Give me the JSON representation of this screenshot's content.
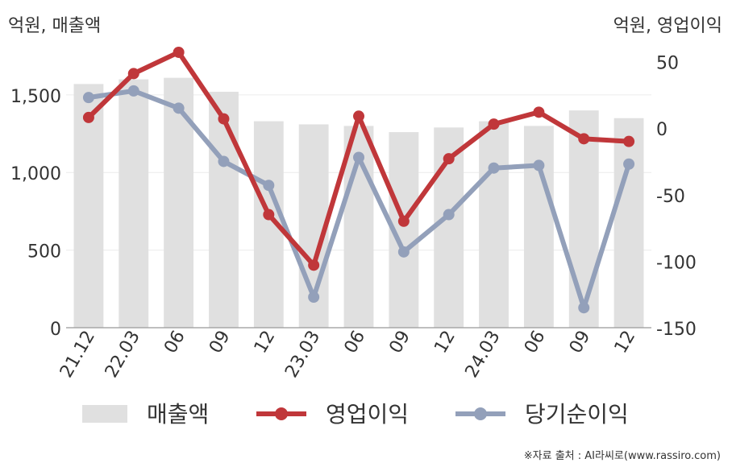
{
  "chart_data": {
    "type": "bar+line",
    "categories": [
      "21.12",
      "22.03",
      "06",
      "09",
      "12",
      "23.03",
      "06",
      "09",
      "12",
      "24.03",
      "06",
      "09",
      "12"
    ],
    "left_axis": {
      "label": "억원, 매출액",
      "ylim": [
        0,
        1800
      ],
      "ticks": [
        0,
        500,
        1000,
        1500
      ],
      "tick_labels": [
        "0",
        "500",
        "1,000",
        "1,500"
      ]
    },
    "right_axis": {
      "label": "억원, 영업이익",
      "ylim": [
        -150,
        60
      ],
      "ticks": [
        -150,
        -100,
        -50,
        0,
        50
      ],
      "tick_labels": [
        "-150",
        "-100",
        "-50",
        "0",
        "50"
      ]
    },
    "series": [
      {
        "name": "매출액",
        "type": "bar",
        "axis": "left",
        "color": "#e0e0e0",
        "values": [
          1570,
          1600,
          1610,
          1520,
          1330,
          1310,
          1300,
          1260,
          1290,
          1330,
          1300,
          1400,
          1350
        ]
      },
      {
        "name": "영업이익",
        "type": "line",
        "axis": "right",
        "color": "#c0373a",
        "values": [
          8,
          41,
          57,
          7,
          -65,
          -103,
          9,
          -70,
          -23,
          3,
          12,
          -8,
          -10
        ]
      },
      {
        "name": "당기순이익",
        "type": "line",
        "axis": "right",
        "color": "#93a0ba",
        "values": [
          23,
          28,
          15,
          -25,
          -43,
          -127,
          -22,
          -93,
          -65,
          -30,
          -28,
          -135,
          -27
        ]
      }
    ],
    "grid": true,
    "legend": "bottom"
  },
  "source": "※자료 출처 : AI라씨로(www.rassiro.com)"
}
